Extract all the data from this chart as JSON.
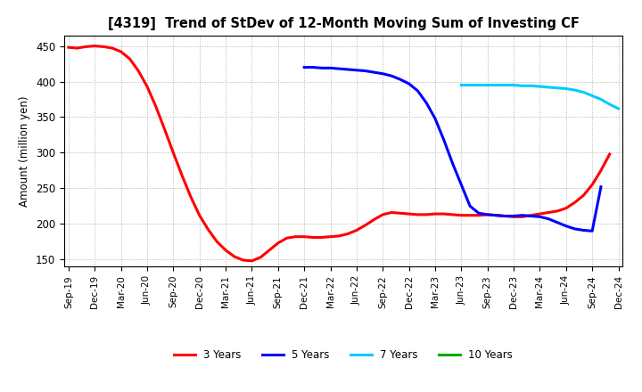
{
  "title": "[4319]  Trend of StDev of 12-Month Moving Sum of Investing CF",
  "ylabel": "Amount (million yen)",
  "ylim": [
    140,
    465
  ],
  "yticks": [
    150,
    200,
    250,
    300,
    350,
    400,
    450
  ],
  "background_color": "#ffffff",
  "grid_color": "#b0b0b0",
  "series": {
    "3 Years": {
      "color": "#ff0000",
      "x": [
        0,
        1,
        2,
        3,
        4,
        5,
        6,
        7,
        8,
        9,
        10,
        11,
        12,
        13,
        14,
        15,
        16,
        17,
        18,
        19,
        20,
        21,
        22,
        23,
        24,
        25,
        26,
        27,
        28,
        29,
        30,
        31,
        32,
        33,
        34,
        35,
        36,
        37,
        38,
        39,
        40,
        41,
        42,
        43,
        44,
        45,
        46,
        47,
        48,
        49,
        50,
        51,
        52,
        53,
        54,
        55,
        56,
        57,
        58,
        59,
        60,
        61,
        62
      ],
      "y": [
        448,
        447,
        449,
        450,
        449,
        447,
        442,
        432,
        415,
        393,
        365,
        333,
        300,
        268,
        238,
        212,
        192,
        175,
        163,
        154,
        149,
        148,
        153,
        163,
        173,
        180,
        182,
        182,
        181,
        181,
        182,
        183,
        186,
        191,
        198,
        206,
        213,
        216,
        215,
        214,
        213,
        213,
        214,
        214,
        213,
        212,
        212,
        212,
        213,
        212,
        211,
        210,
        210,
        212,
        214,
        216,
        218,
        222,
        230,
        240,
        255,
        275,
        298
      ]
    },
    "5 Years": {
      "color": "#0000ff",
      "x": [
        27,
        28,
        29,
        30,
        31,
        32,
        33,
        34,
        35,
        36,
        37,
        38,
        39,
        40,
        41,
        42,
        43,
        44,
        45,
        46,
        47,
        48,
        49,
        50,
        51,
        52,
        53,
        54,
        55,
        56,
        57,
        58,
        59,
        60,
        61
      ],
      "y": [
        420,
        420,
        419,
        419,
        418,
        417,
        416,
        415,
        413,
        411,
        408,
        403,
        397,
        387,
        370,
        348,
        318,
        285,
        255,
        225,
        215,
        213,
        212,
        211,
        211,
        212,
        211,
        210,
        207,
        202,
        197,
        193,
        191,
        190,
        252
      ]
    },
    "7 Years": {
      "color": "#00ccff",
      "x": [
        45,
        46,
        47,
        48,
        49,
        50,
        51,
        52,
        53,
        54,
        55,
        56,
        57,
        58,
        59,
        60,
        61,
        62,
        63
      ],
      "y": [
        395,
        395,
        395,
        395,
        395,
        395,
        395,
        394,
        394,
        393,
        392,
        391,
        390,
        388,
        385,
        380,
        375,
        368,
        362
      ]
    },
    "10 Years": {
      "color": "#00aa00",
      "x": [],
      "y": []
    }
  },
  "xtick_labels": [
    "Sep-19",
    "Dec-19",
    "Mar-20",
    "Jun-20",
    "Sep-20",
    "Dec-20",
    "Mar-21",
    "Jun-21",
    "Sep-21",
    "Dec-21",
    "Mar-22",
    "Jun-22",
    "Sep-22",
    "Dec-22",
    "Mar-23",
    "Jun-23",
    "Sep-23",
    "Dec-23",
    "Mar-24",
    "Jun-24",
    "Sep-24",
    "Dec-24"
  ],
  "xtick_positions": [
    0,
    3,
    6,
    9,
    12,
    15,
    18,
    21,
    24,
    27,
    30,
    33,
    36,
    39,
    42,
    45,
    48,
    51,
    54,
    57,
    60,
    63
  ],
  "xlim": [
    -0.5,
    63.5
  ],
  "linewidth": 2.2,
  "legend_labels": [
    "3 Years",
    "5 Years",
    "7 Years",
    "10 Years"
  ],
  "legend_colors": [
    "#ff0000",
    "#0000ff",
    "#00ccff",
    "#00aa00"
  ]
}
